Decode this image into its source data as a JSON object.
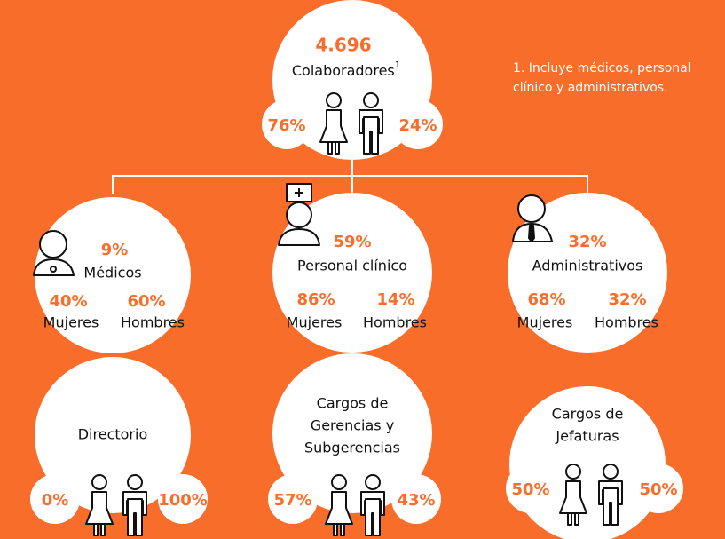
{
  "total": {
    "value": "4.696",
    "label": "Colaboradores",
    "footnote_ref": "1",
    "women": "76%",
    "men": "24%"
  },
  "footnote": {
    "lines": [
      "1. Incluye médicos, personal",
      "clínico y administrativos."
    ]
  },
  "groups": [
    {
      "share": "9%",
      "label": "Médicos",
      "women": "40%",
      "women_label": "Mujeres",
      "men": "60%",
      "men_label": "Hombres"
    },
    {
      "share": "59%",
      "label": "Personal clínico",
      "women": "86%",
      "women_label": "Mujeres",
      "men": "14%",
      "men_label": "Hombres"
    },
    {
      "share": "32%",
      "label": "Administrativos",
      "women": "68%",
      "women_label": "Mujeres",
      "men": "32%",
      "men_label": "Hombres"
    }
  ],
  "leadership": [
    {
      "lines": [
        "Directorio"
      ],
      "women": "0%",
      "men": "100%"
    },
    {
      "lines": [
        "Cargos de",
        "Gerencias y",
        "Subgerencias"
      ],
      "women": "57%",
      "men": "43%"
    },
    {
      "lines": [
        "Cargos de",
        "Jefaturas"
      ],
      "women": "50%",
      "men": "50%"
    }
  ]
}
